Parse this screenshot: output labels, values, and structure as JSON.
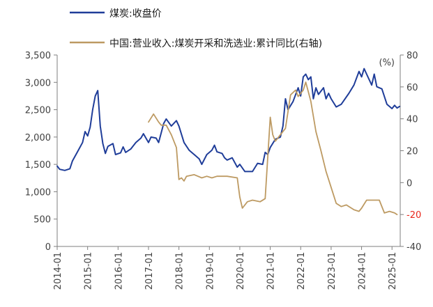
{
  "chart_data": {
    "type": "line",
    "title": "",
    "xlabel": "",
    "legend_position": "top-left",
    "grid": false,
    "x_ticks": [
      "2014-01",
      "2015-01",
      "2016-01",
      "2017-01",
      "2018-01",
      "2019-01",
      "2020-01",
      "2021-01",
      "2022-01",
      "2023-01",
      "2024-01",
      "2025-01"
    ],
    "y_left": {
      "ticks": [
        "0",
        "500",
        "1,000",
        "1,500",
        "2,000",
        "2,500",
        "3,000",
        "3,500"
      ],
      "range": [
        0,
        3500
      ]
    },
    "y_right": {
      "ticks": [
        "-40",
        "-20",
        "0",
        "20",
        "40",
        "60",
        "80"
      ],
      "tick_colors": [
        "#404040",
        "#e8251a",
        "#404040",
        "#404040",
        "#404040",
        "#404040",
        "#404040"
      ],
      "range": [
        -40,
        80
      ],
      "unit_label": "(%)"
    },
    "series": [
      {
        "name": "煤炭:收盘价",
        "axis": "left",
        "color": "#1f3d99",
        "points": [
          [
            "2014-01",
            1470
          ],
          [
            "2014-02",
            1410
          ],
          [
            "2014-04",
            1390
          ],
          [
            "2014-06",
            1420
          ],
          [
            "2014-07",
            1560
          ],
          [
            "2014-09",
            1730
          ],
          [
            "2014-11",
            1900
          ],
          [
            "2014-12",
            2100
          ],
          [
            "2015-01",
            2020
          ],
          [
            "2015-02",
            2180
          ],
          [
            "2015-03",
            2500
          ],
          [
            "2015-04",
            2750
          ],
          [
            "2015-05",
            2850
          ],
          [
            "2015-06",
            2200
          ],
          [
            "2015-07",
            1880
          ],
          [
            "2015-08",
            1700
          ],
          [
            "2015-09",
            1830
          ],
          [
            "2015-11",
            1880
          ],
          [
            "2015-12",
            1680
          ],
          [
            "2016-02",
            1710
          ],
          [
            "2016-03",
            1820
          ],
          [
            "2016-04",
            1720
          ],
          [
            "2016-06",
            1780
          ],
          [
            "2016-08",
            1900
          ],
          [
            "2016-10",
            1980
          ],
          [
            "2016-11",
            2060
          ],
          [
            "2017-01",
            1900
          ],
          [
            "2017-02",
            2000
          ],
          [
            "2017-04",
            1980
          ],
          [
            "2017-05",
            1900
          ],
          [
            "2017-07",
            2250
          ],
          [
            "2017-08",
            2330
          ],
          [
            "2017-10",
            2200
          ],
          [
            "2017-12",
            2300
          ],
          [
            "2018-01",
            2200
          ],
          [
            "2018-03",
            1900
          ],
          [
            "2018-05",
            1760
          ],
          [
            "2018-07",
            1680
          ],
          [
            "2018-09",
            1600
          ],
          [
            "2018-10",
            1500
          ],
          [
            "2018-12",
            1680
          ],
          [
            "2019-01",
            1720
          ],
          [
            "2019-02",
            1760
          ],
          [
            "2019-03",
            1850
          ],
          [
            "2019-04",
            1730
          ],
          [
            "2019-06",
            1700
          ],
          [
            "2019-07",
            1620
          ],
          [
            "2019-08",
            1580
          ],
          [
            "2019-10",
            1620
          ],
          [
            "2019-12",
            1450
          ],
          [
            "2020-01",
            1500
          ],
          [
            "2020-03",
            1370
          ],
          [
            "2020-06",
            1370
          ],
          [
            "2020-08",
            1520
          ],
          [
            "2020-10",
            1500
          ],
          [
            "2020-11",
            1720
          ],
          [
            "2020-12",
            1680
          ],
          [
            "2021-01",
            1810
          ],
          [
            "2021-03",
            1960
          ],
          [
            "2021-05",
            2000
          ],
          [
            "2021-06",
            2200
          ],
          [
            "2021-07",
            2700
          ],
          [
            "2021-08",
            2500
          ],
          [
            "2021-10",
            2650
          ],
          [
            "2021-12",
            2900
          ],
          [
            "2022-01",
            2750
          ],
          [
            "2022-02",
            3100
          ],
          [
            "2022-03",
            3150
          ],
          [
            "2022-04",
            3050
          ],
          [
            "2022-05",
            3100
          ],
          [
            "2022-06",
            2700
          ],
          [
            "2022-07",
            2900
          ],
          [
            "2022-08",
            2780
          ],
          [
            "2022-10",
            2900
          ],
          [
            "2022-11",
            2700
          ],
          [
            "2022-12",
            2800
          ],
          [
            "2023-01",
            2700
          ],
          [
            "2023-03",
            2550
          ],
          [
            "2023-05",
            2600
          ],
          [
            "2023-08",
            2800
          ],
          [
            "2023-10",
            2950
          ],
          [
            "2023-12",
            3200
          ],
          [
            "2024-01",
            3100
          ],
          [
            "2024-02",
            3250
          ],
          [
            "2024-03",
            3150
          ],
          [
            "2024-05",
            2950
          ],
          [
            "2024-06",
            3150
          ],
          [
            "2024-07",
            2920
          ],
          [
            "2024-09",
            2880
          ],
          [
            "2024-11",
            2600
          ],
          [
            "2025-01",
            2520
          ],
          [
            "2025-02",
            2580
          ],
          [
            "2025-03",
            2530
          ],
          [
            "2025-04",
            2560
          ]
        ]
      },
      {
        "name": "中国:营业收入:煤炭开采和洗选业:累计同比(右轴)",
        "axis": "right",
        "color": "#bd9a62",
        "points": [
          [
            "2017-01",
            38
          ],
          [
            "2017-03",
            43
          ],
          [
            "2017-05",
            38
          ],
          [
            "2017-06",
            36
          ],
          [
            "2017-08",
            36
          ],
          [
            "2017-10",
            30
          ],
          [
            "2017-12",
            22
          ],
          [
            "2018-01",
            2
          ],
          [
            "2018-02",
            3
          ],
          [
            "2018-03",
            1
          ],
          [
            "2018-04",
            4
          ],
          [
            "2018-07",
            5
          ],
          [
            "2018-10",
            3
          ],
          [
            "2018-12",
            4
          ],
          [
            "2019-02",
            3
          ],
          [
            "2019-04",
            4
          ],
          [
            "2019-08",
            4
          ],
          [
            "2019-12",
            3
          ],
          [
            "2020-01",
            -9
          ],
          [
            "2020-02",
            -16
          ],
          [
            "2020-04",
            -12
          ],
          [
            "2020-06",
            -11
          ],
          [
            "2020-09",
            -12
          ],
          [
            "2020-11",
            -10
          ],
          [
            "2021-01",
            41
          ],
          [
            "2021-02",
            30
          ],
          [
            "2021-03",
            26
          ],
          [
            "2021-05",
            30
          ],
          [
            "2021-07",
            34
          ],
          [
            "2021-09",
            55
          ],
          [
            "2021-11",
            58
          ],
          [
            "2021-12",
            54
          ],
          [
            "2022-02",
            58
          ],
          [
            "2022-03",
            63
          ],
          [
            "2022-05",
            51
          ],
          [
            "2022-07",
            32
          ],
          [
            "2022-09",
            20
          ],
          [
            "2022-11",
            7
          ],
          [
            "2023-01",
            -3
          ],
          [
            "2023-03",
            -13
          ],
          [
            "2023-05",
            -15
          ],
          [
            "2023-07",
            -14
          ],
          [
            "2023-10",
            -17
          ],
          [
            "2023-12",
            -18
          ],
          [
            "2024-01",
            -16
          ],
          [
            "2024-03",
            -11
          ],
          [
            "2024-05",
            -11
          ],
          [
            "2024-08",
            -11
          ],
          [
            "2024-10",
            -19
          ],
          [
            "2024-12",
            -18
          ],
          [
            "2025-02",
            -19
          ],
          [
            "2025-03",
            -20
          ]
        ]
      }
    ]
  }
}
